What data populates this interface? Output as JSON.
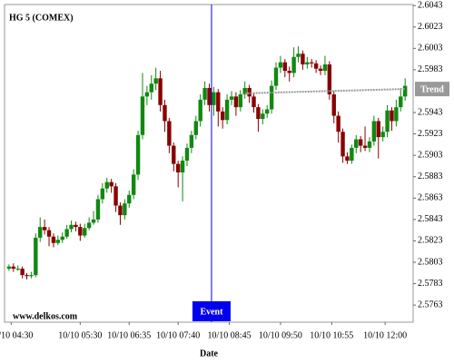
{
  "chart_data": {
    "type": "candlestick",
    "title": "HG 5 (COMEX)",
    "watermark": "www.delkos.com",
    "x_label": "Date",
    "up_color": "#118811",
    "down_color": "#880000",
    "xlim": [
      -1,
      90.8
    ],
    "xticks": [
      {
        "value": 0.5,
        "label": "10/10 04:30"
      },
      {
        "value": 16,
        "label": "10/10 05:30"
      },
      {
        "value": 27,
        "label": "10/10 06:35"
      },
      {
        "value": 38,
        "label": "10/10 07:40"
      },
      {
        "value": 49.5,
        "label": "10/10 08:45"
      },
      {
        "value": 61,
        "label": "10/10 09:50"
      },
      {
        "value": 72.5,
        "label": "10/10 10:55"
      },
      {
        "value": 84.5,
        "label": "10/10 12:00"
      }
    ],
    "ylim": [
      2.5747,
      2.6044
    ],
    "yticks": [
      2.6043,
      2.6023,
      2.6003,
      2.5983,
      2.5943,
      2.5923,
      2.5903,
      2.5883,
      2.5863,
      2.5843,
      2.5823,
      2.5803,
      2.5783,
      2.5763
    ],
    "candles": [
      [
        2.5797,
        2.5801,
        2.5795,
        2.5799
      ],
      [
        2.5799,
        2.5802,
        2.5794,
        2.5797
      ],
      [
        2.5797,
        2.58,
        2.5795,
        2.5797
      ],
      [
        2.5797,
        2.5799,
        2.5788,
        2.5791
      ],
      [
        2.5791,
        2.5793,
        2.5787,
        2.579
      ],
      [
        2.579,
        2.5794,
        2.5788,
        2.5791
      ],
      [
        2.5791,
        2.583,
        2.5789,
        2.5826
      ],
      [
        2.5826,
        2.5845,
        2.5822,
        2.5836
      ],
      [
        2.5836,
        2.5843,
        2.5829,
        2.5833
      ],
      [
        2.5833,
        2.5836,
        2.5818,
        2.5827
      ],
      [
        2.5827,
        2.583,
        2.5817,
        2.5821
      ],
      [
        2.5821,
        2.5828,
        2.5819,
        2.5824
      ],
      [
        2.5824,
        2.5831,
        2.5821,
        2.5827
      ],
      [
        2.5827,
        2.5838,
        2.5825,
        2.5834
      ],
      [
        2.5834,
        2.5842,
        2.5831,
        2.5838
      ],
      [
        2.5838,
        2.5841,
        2.5832,
        2.5836
      ],
      [
        2.5836,
        2.5839,
        2.5823,
        2.5828
      ],
      [
        2.5828,
        2.5839,
        2.5826,
        2.5835
      ],
      [
        2.5835,
        2.5845,
        2.5833,
        2.584
      ],
      [
        2.584,
        2.5851,
        2.5838,
        2.5843
      ],
      [
        2.5843,
        2.5866,
        2.584,
        2.5862
      ],
      [
        2.5862,
        2.5877,
        2.5858,
        2.5872
      ],
      [
        2.5872,
        2.5882,
        2.5868,
        2.5878
      ],
      [
        2.5878,
        2.5881,
        2.5868,
        2.5874
      ],
      [
        2.5874,
        2.5877,
        2.585,
        2.5856
      ],
      [
        2.5856,
        2.5859,
        2.5838,
        2.5847
      ],
      [
        2.5847,
        2.5862,
        2.5843,
        2.5858
      ],
      [
        2.5858,
        2.587,
        2.5854,
        2.5866
      ],
      [
        2.5866,
        2.589,
        2.5862,
        2.5885
      ],
      [
        2.5885,
        2.5926,
        2.588,
        2.5922
      ],
      [
        2.5922,
        2.598,
        2.5918,
        2.5958
      ],
      [
        2.5958,
        2.5968,
        2.595,
        2.5962
      ],
      [
        2.5962,
        2.5978,
        2.5955,
        2.597
      ],
      [
        2.597,
        2.5985,
        2.5964,
        2.5975
      ],
      [
        2.5975,
        2.5982,
        2.5944,
        2.595
      ],
      [
        2.595,
        2.5955,
        2.5925,
        2.5935
      ],
      [
        2.5935,
        2.5938,
        2.5905,
        2.5912
      ],
      [
        2.5912,
        2.5915,
        2.5888,
        2.5895
      ],
      [
        2.5895,
        2.5898,
        2.5873,
        2.5887
      ],
      [
        2.5887,
        2.5902,
        2.586,
        2.5898
      ],
      [
        2.5898,
        2.5914,
        2.5893,
        2.591
      ],
      [
        2.591,
        2.5926,
        2.5905,
        2.5922
      ],
      [
        2.5922,
        2.594,
        2.5918,
        2.5935
      ],
      [
        2.5935,
        2.596,
        2.593,
        2.5955
      ],
      [
        2.5955,
        2.5972,
        2.595,
        2.5966
      ],
      [
        2.5966,
        2.597,
        2.5944,
        2.595
      ],
      [
        2.595,
        2.5967,
        2.594,
        2.5962
      ],
      [
        2.5962,
        2.5965,
        2.593,
        2.5944
      ],
      [
        2.5944,
        2.5948,
        2.5928,
        2.5936
      ],
      [
        2.5936,
        2.596,
        2.5932,
        2.5955
      ],
      [
        2.5955,
        2.5963,
        2.595,
        2.5958
      ],
      [
        2.5958,
        2.5962,
        2.594,
        2.5948
      ],
      [
        2.5948,
        2.5964,
        2.5944,
        2.596
      ],
      [
        2.596,
        2.5972,
        2.5956,
        2.5966
      ],
      [
        2.5966,
        2.5969,
        2.5952,
        2.5958
      ],
      [
        2.5958,
        2.5961,
        2.5943,
        2.5948
      ],
      [
        2.5948,
        2.5951,
        2.5925,
        2.5937
      ],
      [
        2.5937,
        2.5946,
        2.5932,
        2.5942
      ],
      [
        2.5942,
        2.595,
        2.5938,
        2.5946
      ],
      [
        2.5946,
        2.5973,
        2.5942,
        2.5968
      ],
      [
        2.5968,
        2.599,
        2.5964,
        2.5985
      ],
      [
        2.5985,
        2.5996,
        2.598,
        2.599
      ],
      [
        2.599,
        2.5993,
        2.5976,
        2.5982
      ],
      [
        2.5982,
        2.5986,
        2.5972,
        2.598
      ],
      [
        2.598,
        2.6004,
        2.5976,
        2.5995
      ],
      [
        2.5995,
        2.6005,
        2.599,
        2.5998
      ],
      [
        2.5998,
        2.6001,
        2.5983,
        2.5988
      ],
      [
        2.5988,
        2.5995,
        2.5984,
        2.599
      ],
      [
        2.599,
        2.5993,
        2.5985,
        2.5989
      ],
      [
        2.5989,
        2.5992,
        2.598,
        2.5984
      ],
      [
        2.5984,
        2.5987,
        2.5978,
        2.5982
      ],
      [
        2.5982,
        2.5996,
        2.5978,
        2.5988
      ],
      [
        2.5988,
        2.5991,
        2.5955,
        2.596
      ],
      [
        2.596,
        2.5963,
        2.5933,
        2.594
      ],
      [
        2.594,
        2.5944,
        2.5915,
        2.5925
      ],
      [
        2.5925,
        2.5928,
        2.5896,
        2.5902
      ],
      [
        2.5902,
        2.5906,
        2.5895,
        2.5898
      ],
      [
        2.5898,
        2.5913,
        2.5895,
        2.591
      ],
      [
        2.591,
        2.5922,
        2.5905,
        2.5918
      ],
      [
        2.5918,
        2.5921,
        2.5906,
        2.5912
      ],
      [
        2.5912,
        2.593,
        2.5907,
        2.591
      ],
      [
        2.591,
        2.592,
        2.5906,
        2.5916
      ],
      [
        2.5916,
        2.594,
        2.5912,
        2.5935
      ],
      [
        2.5935,
        2.5938,
        2.59,
        2.592
      ],
      [
        2.592,
        2.593,
        2.5916,
        2.5925
      ],
      [
        2.5925,
        2.595,
        2.592,
        2.5945
      ],
      [
        2.5945,
        2.5948,
        2.5926,
        2.5935
      ],
      [
        2.5935,
        2.5955,
        2.593,
        2.5948
      ],
      [
        2.5948,
        2.5966,
        2.5944,
        2.5958
      ],
      [
        2.5958,
        2.5975,
        2.5954,
        2.5968
      ]
    ],
    "trend": {
      "label": "Trend",
      "color": "#999999",
      "x": [
        53,
        89
      ],
      "values": [
        2.5961,
        2.5965
      ]
    },
    "event": {
      "label": "Event",
      "color": "#0000ee",
      "x": 45.5
    }
  }
}
